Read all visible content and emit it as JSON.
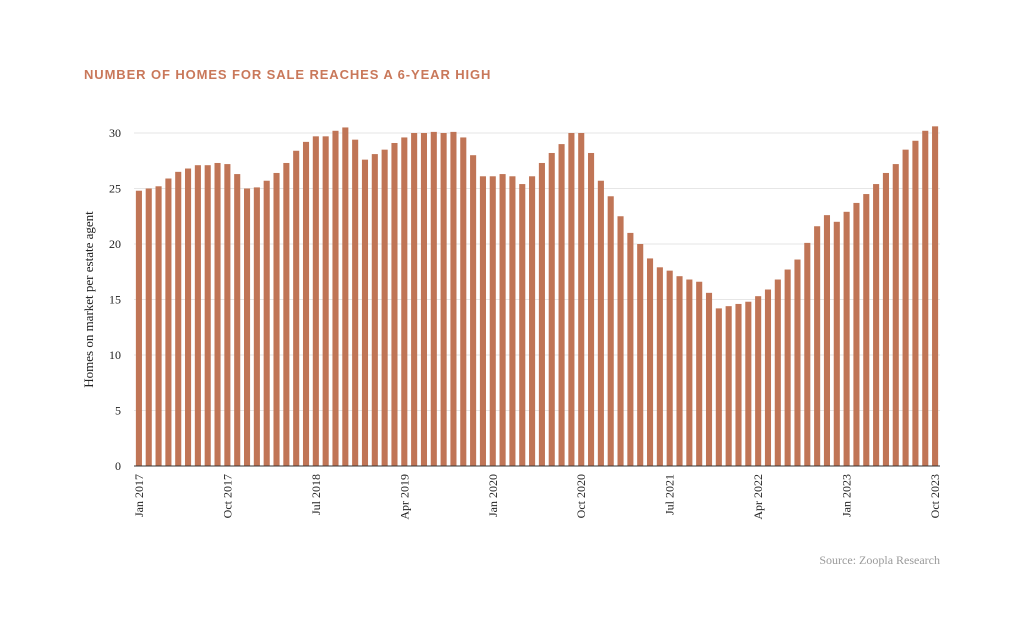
{
  "chart_data": {
    "type": "bar",
    "title": "NUMBER OF HOMES FOR SALE REACHES A 6-YEAR HIGH",
    "ylabel": "Homes on market per estate agent",
    "xlabel": "",
    "ylim": [
      0,
      30
    ],
    "yticks": [
      0,
      5,
      10,
      15,
      20,
      25,
      30
    ],
    "grid": true,
    "source": "Source: Zoopla Research",
    "bar_color": "#c07556",
    "x_tick_labels": [
      {
        "index": 0,
        "label": "Jan 2017"
      },
      {
        "index": 9,
        "label": "Oct 2017"
      },
      {
        "index": 18,
        "label": "Jul 2018"
      },
      {
        "index": 27,
        "label": "Apr 2019"
      },
      {
        "index": 36,
        "label": "Jan 2020"
      },
      {
        "index": 45,
        "label": "Oct 2020"
      },
      {
        "index": 54,
        "label": "Jul 2021"
      },
      {
        "index": 63,
        "label": "Apr 2022"
      },
      {
        "index": 72,
        "label": "Jan 2023"
      },
      {
        "index": 81,
        "label": "Oct 2023"
      }
    ],
    "values": [
      24.8,
      25.0,
      25.2,
      25.9,
      26.5,
      26.8,
      27.1,
      27.1,
      27.3,
      27.2,
      26.3,
      25.0,
      25.1,
      25.7,
      26.4,
      27.3,
      28.4,
      29.2,
      29.7,
      29.7,
      30.2,
      30.5,
      29.4,
      27.6,
      28.1,
      28.5,
      29.1,
      29.6,
      30.0,
      30.0,
      30.1,
      30.0,
      30.1,
      29.6,
      28.0,
      26.1,
      26.1,
      26.3,
      26.1,
      25.4,
      26.1,
      27.3,
      28.2,
      29.0,
      30.0,
      30.0,
      28.2,
      25.7,
      24.3,
      22.5,
      21.0,
      20.0,
      18.7,
      17.9,
      17.6,
      17.1,
      16.8,
      16.6,
      15.6,
      14.2,
      14.4,
      14.6,
      14.8,
      15.3,
      15.9,
      16.8,
      17.7,
      18.6,
      20.1,
      21.6,
      22.6,
      22.0,
      22.9,
      23.7,
      24.5,
      25.4,
      26.4,
      27.2,
      28.5,
      29.3,
      30.2,
      30.6
    ]
  }
}
